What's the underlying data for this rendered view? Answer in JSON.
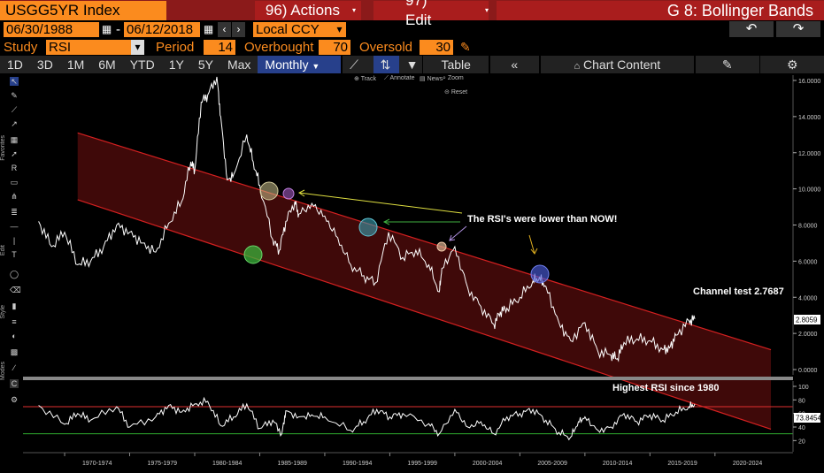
{
  "title_bar": {
    "ticker": "USGG5YR Index",
    "actions": "96) Actions",
    "edit": "97) Edit",
    "function": "G 8: Bollinger Bands"
  },
  "controls": {
    "date_from": "06/30/1988",
    "date_to": "06/12/2018",
    "date_sep": "-",
    "currency": "Local CCY",
    "study_label": "Study",
    "study_value": "RSI",
    "period_label": "Period",
    "period_value": "14",
    "overbought_label": "Overbought",
    "overbought_value": "70",
    "oversold_label": "Oversold",
    "oversold_value": "30"
  },
  "tabs": {
    "ranges": [
      "1D",
      "3D",
      "1M",
      "6M",
      "YTD",
      "1Y",
      "5Y",
      "Max"
    ],
    "frequency": "Monthly",
    "table": "Table",
    "chart_content": "Chart Content"
  },
  "mini_toolbar": {
    "track": "Track",
    "annotate": "Annotate",
    "news": "News",
    "zoom": "Zoom",
    "reset": "Reset"
  },
  "sidebar_labels": {
    "favorites": "Favorites",
    "edit": "Edit",
    "style": "Style",
    "modes": "Modes"
  },
  "icons": [
    "arrow-icon",
    "pencil-icon",
    "line-icon",
    "text-icon",
    "undo-icon",
    "redo-icon",
    "settings-icon"
  ],
  "annotations": {
    "rsi_lower": "The RSI's were lower than NOW!",
    "channel_test": "Channel test 2.7687",
    "highest_rsi": "Highest RSI since 1980"
  },
  "colors": {
    "channel": "#d42020",
    "channel_fill": "#4a0b0b",
    "price_line": "#ffffff",
    "overbought_line": "#e03030",
    "oversold_line": "#2fae2f",
    "last_price_bg": "#ffffff",
    "bloomberg_orange": "#fb8b1e"
  },
  "chart_data": [
    {
      "type": "line",
      "series": [
        {
          "x": [
            1968,
            1969,
            1970,
            1971,
            1972,
            1973,
            1974,
            1975,
            1976,
            1977,
            1978,
            1979,
            1979.7,
            1980,
            1980.5,
            1981,
            1981.7,
            1982,
            1982.5,
            1983,
            1984,
            1984.5,
            1985,
            1986,
            1986.5,
            1987,
            1987.7,
            1988,
            1989,
            1990,
            1991,
            1992,
            1993,
            1993.9,
            1994.9,
            1996,
            1997,
            1998,
            1998.8,
            1999,
            2000,
            2001,
            2002,
            2003,
            2003.5,
            2004,
            2005,
            2006,
            2006.5,
            2007,
            2008,
            2008.9,
            2010,
            2011,
            2012,
            2012.5,
            2013,
            2014,
            2015,
            2016,
            2016.5,
            2017,
            2018,
            2018.45
          ],
          "y": [
            8.2,
            6.8,
            7.6,
            5.8,
            6.0,
            6.8,
            8.0,
            7.6,
            7.0,
            6.5,
            8.1,
            9.3,
            11.5,
            11.0,
            14.8,
            15.2,
            16.2,
            14.0,
            10.5,
            10.8,
            13.0,
            11.5,
            10.2,
            7.2,
            6.6,
            8.2,
            9.3,
            8.6,
            9.2,
            8.5,
            7.3,
            5.8,
            5.2,
            4.8,
            7.6,
            6.2,
            6.6,
            5.8,
            4.3,
            5.6,
            6.8,
            4.5,
            3.5,
            2.5,
            3.2,
            3.4,
            4.0,
            4.9,
            5.1,
            4.6,
            2.6,
            1.6,
            2.6,
            1.0,
            0.8,
            0.6,
            1.5,
            1.7,
            1.6,
            1.1,
            1.2,
            1.9,
            2.7,
            2.8
          ]
        }
      ],
      "ylim": [
        0,
        16
      ],
      "y_ticks": [
        "16.0000",
        "14.0000",
        "12.0000",
        "10.0000",
        "8.0000",
        "6.0000",
        "4.0000",
        "2.0000",
        "0.0000"
      ],
      "last_value_label": "2.8059",
      "x_ticks": [
        "1970-1974",
        "1975-1979",
        "1980-1984",
        "1985-1989",
        "1990-1994",
        "1995-1999",
        "2000-2004",
        "2005-2009",
        "2010-2014",
        "2015-2019",
        "2020-2024"
      ],
      "channel": {
        "upper": [
          [
            1971,
            13.1
          ],
          [
            2024.3,
            1.1
          ]
        ],
        "lower": [
          [
            1971,
            9.4
          ],
          [
            2024.3,
            -3.3
          ]
        ]
      }
    },
    {
      "type": "line",
      "series": [
        {
          "x": [
            1968,
            1970,
            1971,
            1972,
            1974,
            1975,
            1977,
            1978,
            1979,
            1980,
            1981,
            1982,
            1983,
            1984,
            1985,
            1986,
            1986.7,
            1987,
            1988,
            1989,
            1990,
            1992,
            1993,
            1994,
            1995,
            1996,
            1998,
            1998.8,
            2000,
            2001,
            2002,
            2003,
            2004,
            2005,
            2006,
            2007,
            2008,
            2008.9,
            2009.5,
            2010,
            2011,
            2012,
            2013,
            2014,
            2015,
            2016,
            2017,
            2018,
            2018.45
          ],
          "y": [
            72,
            44,
            60,
            50,
            70,
            40,
            55,
            72,
            62,
            74,
            78,
            42,
            55,
            74,
            38,
            50,
            30,
            64,
            55,
            58,
            55,
            35,
            48,
            66,
            55,
            60,
            45,
            30,
            66,
            40,
            48,
            30,
            55,
            60,
            66,
            50,
            32,
            25,
            48,
            55,
            35,
            40,
            60,
            48,
            58,
            50,
            62,
            70,
            73.85
          ]
        }
      ],
      "ylim": [
        10,
        100
      ],
      "y_ticks": [
        "100",
        "80",
        "60",
        "40",
        "20"
      ],
      "overbought": 70,
      "oversold": 30,
      "last_value_label": "73.8454"
    }
  ]
}
